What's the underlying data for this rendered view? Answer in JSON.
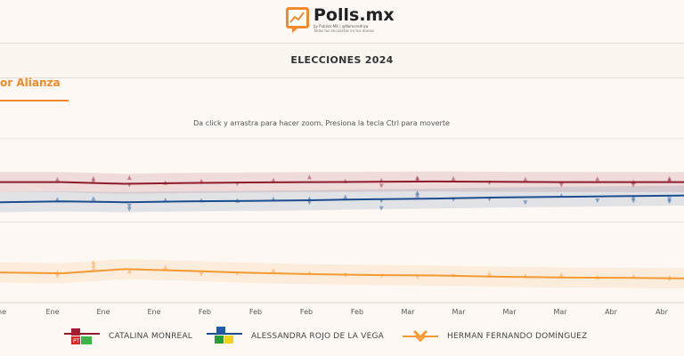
{
  "header": {
    "brand": "Polls.mx",
    "brand_sub": "by Publico MX | @Nomoredraw",
    "brand_tag": "Todas las encuestas en tus dianos"
  },
  "nav": {
    "title": "ELECCIONES 2024"
  },
  "tab": {
    "label": "or Alianza"
  },
  "hint": "Da click y arrastra para hacer zoom. Presiona la tecla Ctrl para moverte",
  "colors": {
    "monreal": "#8e1b2b",
    "rojo": "#1b4c8f",
    "herman": "#f39a32"
  },
  "legend": [
    {
      "label": "CATALINA MONREAL",
      "icon": "morena-pt-pvem-logos"
    },
    {
      "label": "ALESSANDRA ROJO DE LA VEGA",
      "icon": "pan-pri-prd-logos"
    },
    {
      "label": "HERMAN FERNANDO DOMÍNGUEZ",
      "icon": "movimiento-ciudadano-logo"
    }
  ],
  "chart_data": {
    "type": "line",
    "x_ticks": [
      "ne",
      "Ene",
      "Ene",
      "Ene",
      "Feb",
      "Feb",
      "Feb",
      "Feb",
      "Mar",
      "Mar",
      "Mar",
      "Mar",
      "Abr",
      "Abr"
    ],
    "series": [
      {
        "name": "CATALINA MONREAL",
        "trend": [
          0.72,
          0.72,
          0.71,
          0.715,
          0.718,
          0.72,
          0.722,
          0.724,
          0.722,
          0.72,
          0.72,
          0.72
        ],
        "points": [
          [
            1,
            0.735
          ],
          [
            2,
            0.74
          ],
          [
            2,
            0.725
          ],
          [
            3,
            0.745
          ],
          [
            3,
            0.705
          ],
          [
            4,
            0.715
          ],
          [
            5,
            0.725
          ],
          [
            6,
            0.713
          ],
          [
            7,
            0.73
          ],
          [
            8,
            0.748
          ],
          [
            9,
            0.725
          ],
          [
            10,
            0.73
          ],
          [
            10,
            0.7
          ],
          [
            11,
            0.745
          ],
          [
            11,
            0.735
          ],
          [
            12,
            0.74
          ],
          [
            13,
            0.718
          ],
          [
            14,
            0.735
          ],
          [
            15,
            0.705
          ],
          [
            16,
            0.738
          ],
          [
            17,
            0.72
          ],
          [
            17,
            0.705
          ],
          [
            18,
            0.74
          ],
          [
            18,
            0.73
          ]
        ]
      },
      {
        "name": "ALESSANDRA ROJO DE LA VEGA",
        "trend": [
          0.6,
          0.605,
          0.6,
          0.605,
          0.608,
          0.612,
          0.618,
          0.622,
          0.628,
          0.632,
          0.636,
          0.64
        ],
        "points": [
          [
            1,
            0.615
          ],
          [
            2,
            0.62
          ],
          [
            3,
            0.58
          ],
          [
            3,
            0.56
          ],
          [
            4,
            0.612
          ],
          [
            5,
            0.61
          ],
          [
            6,
            0.608
          ],
          [
            7,
            0.618
          ],
          [
            8,
            0.62
          ],
          [
            8,
            0.6
          ],
          [
            9,
            0.63
          ],
          [
            10,
            0.61
          ],
          [
            10,
            0.565
          ],
          [
            11,
            0.655
          ],
          [
            11,
            0.64
          ],
          [
            12,
            0.618
          ],
          [
            13,
            0.62
          ],
          [
            14,
            0.6
          ],
          [
            15,
            0.638
          ],
          [
            16,
            0.612
          ],
          [
            17,
            0.625
          ],
          [
            17,
            0.61
          ],
          [
            18,
            0.62
          ],
          [
            18,
            0.605
          ]
        ]
      },
      {
        "name": "HERMAN FERNANDO DOMÍNGUEZ",
        "trend": [
          0.18,
          0.175,
          0.2,
          0.19,
          0.178,
          0.17,
          0.165,
          0.162,
          0.155,
          0.15,
          0.148,
          0.145
        ],
        "points": [
          [
            1,
            0.18
          ],
          [
            1,
            0.16
          ],
          [
            2,
            0.24
          ],
          [
            2,
            0.22
          ],
          [
            2,
            0.2
          ],
          [
            3,
            0.185
          ],
          [
            4,
            0.21
          ],
          [
            5,
            0.17
          ],
          [
            6,
            0.175
          ],
          [
            7,
            0.19
          ],
          [
            8,
            0.175
          ],
          [
            9,
            0.165
          ],
          [
            10,
            0.16
          ],
          [
            11,
            0.155
          ],
          [
            12,
            0.16
          ],
          [
            13,
            0.17
          ],
          [
            14,
            0.158
          ],
          [
            15,
            0.165
          ],
          [
            16,
            0.15
          ],
          [
            17,
            0.155
          ],
          [
            18,
            0.15
          ],
          [
            18,
            0.14
          ]
        ]
      }
    ]
  }
}
